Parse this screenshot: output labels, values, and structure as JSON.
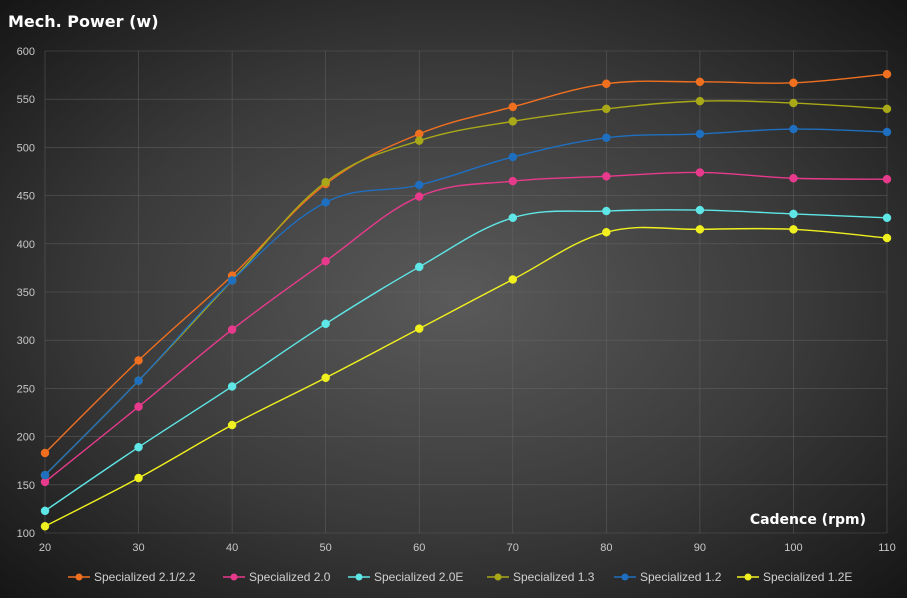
{
  "chart_data": {
    "type": "line",
    "title": "Mech. Power (w)",
    "xlabel": "Cadence (rpm)",
    "ylabel": "",
    "x": [
      20,
      30,
      40,
      50,
      60,
      70,
      80,
      90,
      100,
      110
    ],
    "xlim": [
      20,
      110
    ],
    "ylim": [
      100,
      600
    ],
    "yticks": [
      100,
      150,
      200,
      250,
      300,
      350,
      400,
      450,
      500,
      550,
      600
    ],
    "grid": true,
    "legend_position": "bottom",
    "series": [
      {
        "name": "Specialized 2.1/2.2",
        "color": "#f07020",
        "values": [
          183,
          279,
          367,
          462,
          514,
          542,
          566,
          568,
          567,
          576
        ]
      },
      {
        "name": "Specialized 2.0",
        "color": "#e83a8c",
        "values": [
          153,
          231,
          311,
          382,
          449,
          465,
          470,
          474,
          468,
          467
        ]
      },
      {
        "name": "Specialized 2.0E",
        "color": "#5fe6e6",
        "values": [
          123,
          189,
          252,
          317,
          376,
          427,
          434,
          435,
          431,
          427
        ]
      },
      {
        "name": "Specialized 1.3",
        "color": "#a8a818",
        "values": [
          160,
          258,
          362,
          464,
          507,
          527,
          540,
          548,
          546,
          540
        ]
      },
      {
        "name": "Specialized 1.2",
        "color": "#1f6fc0",
        "values": [
          160,
          258,
          362,
          443,
          461,
          490,
          510,
          514,
          519,
          516
        ]
      },
      {
        "name": "Specialized 1.2E",
        "color": "#f0f020",
        "values": [
          107,
          157,
          212,
          261,
          312,
          363,
          412,
          415,
          415,
          406
        ]
      }
    ]
  }
}
